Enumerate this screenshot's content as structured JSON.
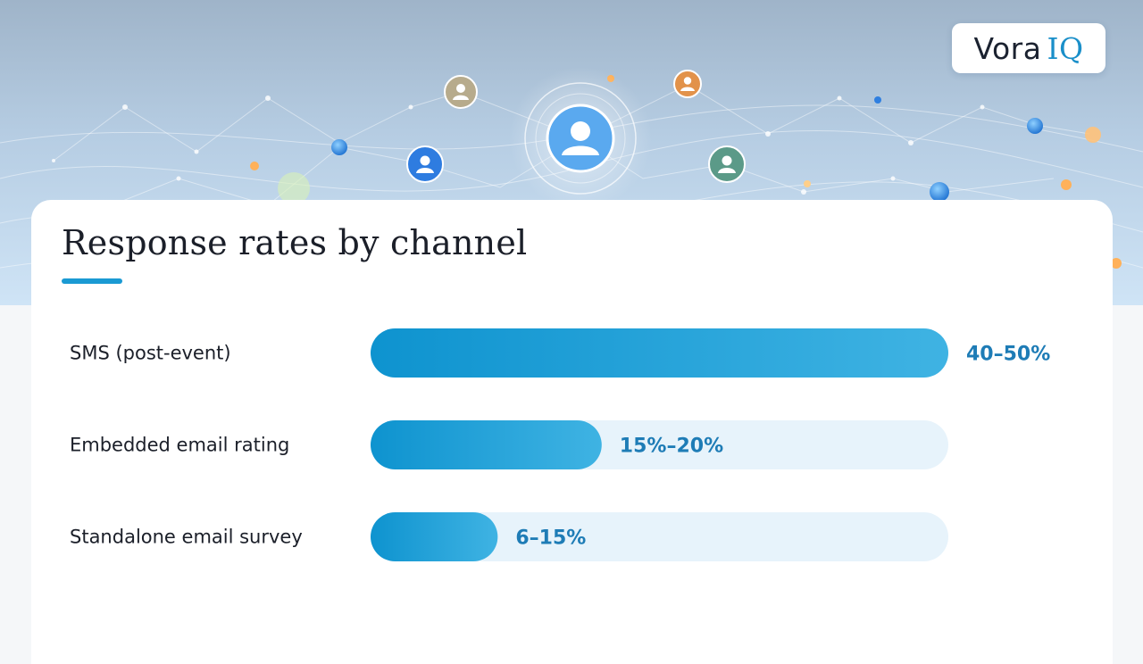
{
  "logo": {
    "word1": "Vora",
    "word2": "IQ"
  },
  "title": "Response rates by channel",
  "colors": {
    "accent": "#1a9ad3",
    "bar_start": "#0e93cf",
    "bar_end": "#3fb3e3",
    "track": "#e7f3fb",
    "value_text": "#1e7cb6"
  },
  "icons": [
    "user-avatar-icon",
    "user-avatar-icon",
    "user-avatar-icon",
    "user-avatar-icon",
    "user-avatar-icon"
  ],
  "chart_data": {
    "type": "bar",
    "orientation": "horizontal",
    "title": "Response rates by channel",
    "xlabel": "",
    "ylabel": "",
    "xlim": [
      0,
      50
    ],
    "grid": false,
    "legend": "none",
    "categories": [
      "SMS (post-event)",
      "Embedded email rating",
      "Standalone email survey"
    ],
    "values": [
      50,
      20,
      11
    ],
    "value_labels": [
      "40–50%",
      "15%–20%",
      "6–15%"
    ]
  }
}
